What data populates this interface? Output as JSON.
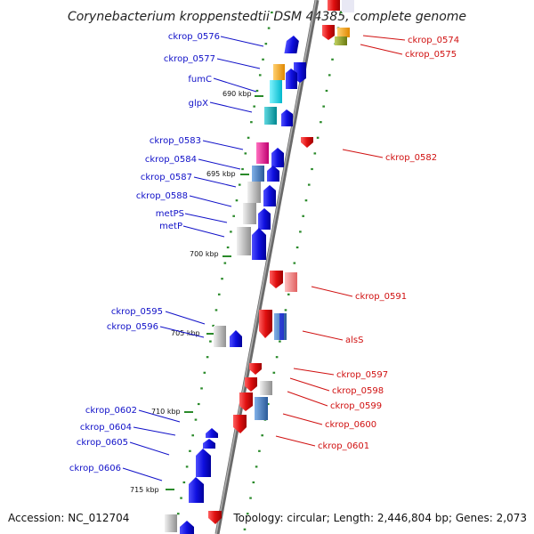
{
  "title": "Corynebacterium kroppenstedtii DSM 44385, complete genome",
  "footer": {
    "accession": "Accession: NC_012704",
    "summary": "Topology: circular; Length: 2,446,804 bp; Genes: 2,073"
  },
  "scale_labels": [
    "690 kbp",
    "695 kbp",
    "700 kbp",
    "705 kbp",
    "710 kbp",
    "715 kbp"
  ],
  "left_labels": [
    "ckrop_0576",
    "ckrop_0577",
    "fumC",
    "glpX",
    "ckrop_0583",
    "ckrop_0584",
    "ckrop_0587",
    "ckrop_0588",
    "metPS",
    "metP",
    "ckrop_0595",
    "ckrop_0596",
    "ckrop_0602",
    "ckrop_0604",
    "ckrop_0605",
    "ckrop_0606"
  ],
  "right_labels": [
    "ckrop_0574",
    "ckrop_0575",
    "ckrop_0582",
    "ckrop_0591",
    "alsS",
    "ckrop_0597",
    "ckrop_0598",
    "ckrop_0599",
    "ckrop_0600",
    "ckrop_0601"
  ],
  "colors": {
    "forward_cds": "#1010e0",
    "reverse_cds": "#e01010",
    "backbone": "#888888",
    "ticks": "#2a8a2a",
    "cog_orange": "#f0a020",
    "cog_cyan": "#10d0e0",
    "cog_teal": "#10a8b0",
    "cog_magenta": "#e0208c",
    "cog_steelblue": "#3a78b8",
    "cog_gray": "#b8b8b8",
    "cog_pink": "#f08080",
    "cog_olive": "#8a9a20"
  }
}
